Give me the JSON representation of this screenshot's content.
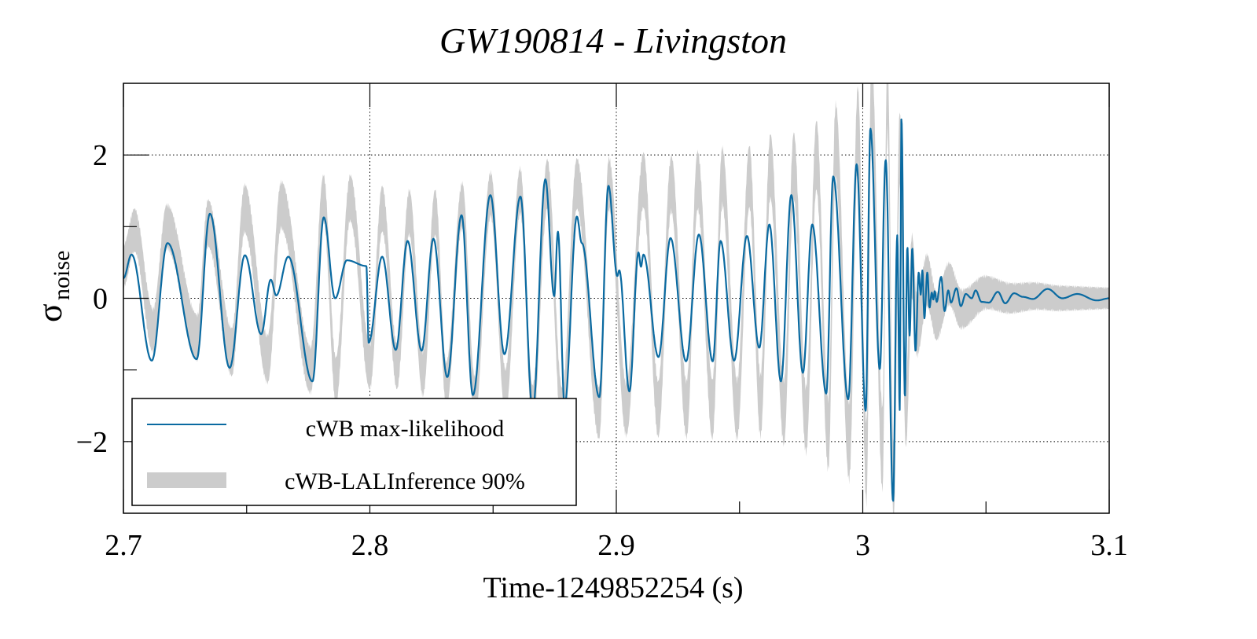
{
  "chart_data": {
    "type": "line",
    "title": "GW190814 - Livingston",
    "xlabel": "Time-1249852254 (s)",
    "ylabel": "σ",
    "ylabel_subscript": "noise",
    "xlim": [
      2.7,
      3.1
    ],
    "ylim": [
      -3,
      3
    ],
    "xticks": [
      2.7,
      2.8,
      2.9,
      3.0,
      3.1
    ],
    "xtick_labels": [
      "2.7",
      "2.8",
      "2.9",
      "3",
      "3.1"
    ],
    "xminor_ticks": [
      2.75,
      2.85,
      2.95,
      3.05
    ],
    "yticks": [
      -2,
      0,
      2
    ],
    "ytick_labels": [
      "−2",
      "0",
      "2"
    ],
    "yminor_ticks": [
      -1,
      1
    ],
    "grid": true,
    "legend_position": "bottom-left",
    "colors": {
      "max_likelihood": "#0a6aa1",
      "band": "#cccccc"
    },
    "legend": [
      {
        "label": "cWB max-likelihood",
        "kind": "line"
      },
      {
        "label": "cWB-LALInference 90%",
        "kind": "band"
      }
    ],
    "series": [
      {
        "name": "cWB max-likelihood",
        "kind": "line",
        "extrema": [
          [
            2.7,
            0.28
          ],
          [
            2.7033,
            0.61
          ],
          [
            2.7115,
            -0.87
          ],
          [
            2.7179,
            0.77
          ],
          [
            2.7297,
            -0.85
          ],
          [
            2.7351,
            1.18
          ],
          [
            2.7431,
            -0.97
          ],
          [
            2.7493,
            0.6
          ],
          [
            2.7559,
            -0.5
          ],
          [
            2.7598,
            0.26
          ],
          [
            2.762,
            0.04
          ],
          [
            2.7669,
            0.58
          ],
          [
            2.7767,
            -1.16
          ],
          [
            2.7813,
            1.13
          ],
          [
            2.7859,
            0.0
          ],
          [
            2.7907,
            0.53
          ],
          [
            2.7986,
            0.45
          ],
          [
            2.7995,
            -0.62
          ],
          [
            2.805,
            0.58
          ],
          [
            2.8105,
            -0.72
          ],
          [
            2.8153,
            0.8
          ],
          [
            2.821,
            -0.73
          ],
          [
            2.8258,
            0.83
          ],
          [
            2.8314,
            -1.1
          ],
          [
            2.8372,
            1.16
          ],
          [
            2.8418,
            -1.35
          ],
          [
            2.8489,
            1.44
          ],
          [
            2.8546,
            -0.78
          ],
          [
            2.8611,
            1.42
          ],
          [
            2.8661,
            -1.57
          ],
          [
            2.8712,
            1.66
          ],
          [
            2.8748,
            0.03
          ],
          [
            2.8763,
            0.93
          ],
          [
            2.879,
            -1.5
          ],
          [
            2.884,
            1.14
          ],
          [
            2.886,
            0.77
          ],
          [
            2.8931,
            -1.38
          ],
          [
            2.8968,
            1.57
          ],
          [
            2.9004,
            0.31
          ],
          [
            2.9012,
            0.39
          ],
          [
            2.9053,
            -1.3
          ],
          [
            2.909,
            0.64
          ],
          [
            2.91,
            0.44
          ],
          [
            2.911,
            0.61
          ],
          [
            2.9171,
            -0.82
          ],
          [
            2.922,
            0.84
          ],
          [
            2.9283,
            -0.88
          ],
          [
            2.9335,
            0.89
          ],
          [
            2.9391,
            -0.88
          ],
          [
            2.9423,
            0.8
          ],
          [
            2.9478,
            -0.87
          ],
          [
            2.953,
            0.87
          ],
          [
            2.958,
            -0.69
          ],
          [
            2.9621,
            1.03
          ],
          [
            2.9668,
            -1.16
          ],
          [
            2.971,
            1.44
          ],
          [
            2.9757,
            -1.04
          ],
          [
            2.9795,
            1.03
          ],
          [
            2.9852,
            -1.33
          ],
          [
            2.988,
            1.7
          ],
          [
            2.9941,
            -1.41
          ],
          [
            2.9975,
            1.87
          ],
          [
            3.0012,
            -1.57
          ],
          [
            3.0031,
            2.37
          ],
          [
            3.0069,
            -0.99
          ],
          [
            3.0093,
            1.93
          ],
          [
            3.0123,
            -2.83
          ],
          [
            3.014,
            0.88
          ],
          [
            3.015,
            -1.56
          ],
          [
            3.0157,
            2.52
          ],
          [
            3.0171,
            -1.38
          ],
          [
            3.0181,
            0.72
          ],
          [
            3.019,
            -0.52
          ],
          [
            3.0201,
            0.7
          ],
          [
            3.0214,
            -0.74
          ],
          [
            3.0227,
            0.36
          ],
          [
            3.0235,
            0.05
          ],
          [
            3.0242,
            0.39
          ],
          [
            3.025,
            -0.28
          ],
          [
            3.0262,
            0.36
          ],
          [
            3.0271,
            -0.13
          ],
          [
            3.028,
            0.08
          ],
          [
            3.0286,
            -0.02
          ],
          [
            3.0292,
            0.1
          ],
          [
            3.03,
            -0.05
          ],
          [
            3.0318,
            0.3
          ],
          [
            3.0332,
            -0.18
          ],
          [
            3.0347,
            0.11
          ],
          [
            3.0358,
            -0.06
          ],
          [
            3.038,
            0.14
          ],
          [
            3.0398,
            -0.11
          ],
          [
            3.0418,
            0.06
          ],
          [
            3.0442,
            0.0
          ],
          [
            3.0458,
            0.11
          ],
          [
            3.0482,
            -0.05
          ],
          [
            3.0512,
            -0.06
          ],
          [
            3.0548,
            0.09
          ],
          [
            3.0578,
            -0.07
          ],
          [
            3.0614,
            0.07
          ],
          [
            3.065,
            0.02
          ],
          [
            3.069,
            -0.01
          ],
          [
            3.075,
            0.13
          ],
          [
            3.081,
            0.0
          ],
          [
            3.087,
            0.06
          ],
          [
            3.095,
            -0.03
          ],
          [
            3.1,
            0.0
          ]
        ]
      },
      {
        "name": "cWB-LALInference 90%",
        "kind": "band",
        "center_extrema": [
          [
            2.7,
            0.45
          ],
          [
            2.7045,
            0.95
          ],
          [
            2.712,
            -0.45
          ],
          [
            2.7176,
            1.0
          ],
          [
            2.73,
            -0.55
          ],
          [
            2.7343,
            1.05
          ],
          [
            2.744,
            -0.75
          ],
          [
            2.7492,
            1.25
          ],
          [
            2.7585,
            -0.85
          ],
          [
            2.764,
            1.3
          ],
          [
            2.776,
            -1.0
          ],
          [
            2.7812,
            1.4
          ],
          [
            2.7862,
            -1.15
          ],
          [
            2.792,
            1.4
          ],
          [
            2.8,
            -0.95
          ],
          [
            2.805,
            1.25
          ],
          [
            2.811,
            -0.95
          ],
          [
            2.816,
            1.2
          ],
          [
            2.8215,
            -1.05
          ],
          [
            2.8265,
            1.2
          ],
          [
            2.831,
            -1.2
          ],
          [
            2.8375,
            1.3
          ],
          [
            2.8425,
            -1.4
          ],
          [
            2.849,
            1.45
          ],
          [
            2.855,
            -1.3
          ],
          [
            2.861,
            1.5
          ],
          [
            2.866,
            -1.55
          ],
          [
            2.872,
            1.6
          ],
          [
            2.878,
            -1.6
          ],
          [
            2.884,
            1.6
          ],
          [
            2.893,
            -1.6
          ],
          [
            2.897,
            1.6
          ],
          [
            2.904,
            -1.55
          ],
          [
            2.911,
            1.65
          ],
          [
            2.917,
            -1.55
          ],
          [
            2.9223,
            1.6
          ],
          [
            2.9285,
            -1.55
          ],
          [
            2.933,
            1.65
          ],
          [
            2.939,
            -1.55
          ],
          [
            2.943,
            1.7
          ],
          [
            2.949,
            -1.55
          ],
          [
            2.954,
            1.7
          ],
          [
            2.9585,
            -1.5
          ],
          [
            2.9625,
            1.85
          ],
          [
            2.968,
            -1.6
          ],
          [
            2.972,
            1.85
          ],
          [
            2.977,
            -1.7
          ],
          [
            2.9812,
            2.0
          ],
          [
            2.986,
            -1.9
          ],
          [
            2.989,
            2.2
          ],
          [
            2.9945,
            -2.0
          ],
          [
            2.998,
            2.4
          ],
          [
            3.0015,
            -2.3
          ],
          [
            3.0035,
            2.9
          ],
          [
            3.008,
            -2.1
          ],
          [
            3.01,
            2.9
          ],
          [
            3.0125,
            -2.6
          ],
          [
            3.015,
            2.1
          ],
          [
            3.0175,
            -1.6
          ],
          [
            3.02,
            0.45
          ],
          [
            3.022,
            -0.4
          ],
          [
            3.026,
            0.25
          ],
          [
            3.03,
            -0.25
          ],
          [
            3.035,
            0.2
          ],
          [
            3.04,
            -0.15
          ],
          [
            3.05,
            0.08
          ],
          [
            3.06,
            0.0
          ],
          [
            3.07,
            0.03
          ],
          [
            3.08,
            0.0
          ],
          [
            3.1,
            0.0
          ]
        ],
        "half_width_profile": [
          [
            2.7,
            0.28
          ],
          [
            2.75,
            0.32
          ],
          [
            2.8,
            0.3
          ],
          [
            2.85,
            0.3
          ],
          [
            2.9,
            0.35
          ],
          [
            2.95,
            0.4
          ],
          [
            2.98,
            0.45
          ],
          [
            3.0,
            0.55
          ],
          [
            3.01,
            0.55
          ],
          [
            3.018,
            0.45
          ],
          [
            3.025,
            0.35
          ],
          [
            3.035,
            0.28
          ],
          [
            3.05,
            0.22
          ],
          [
            3.07,
            0.18
          ],
          [
            3.1,
            0.14
          ]
        ]
      }
    ]
  }
}
